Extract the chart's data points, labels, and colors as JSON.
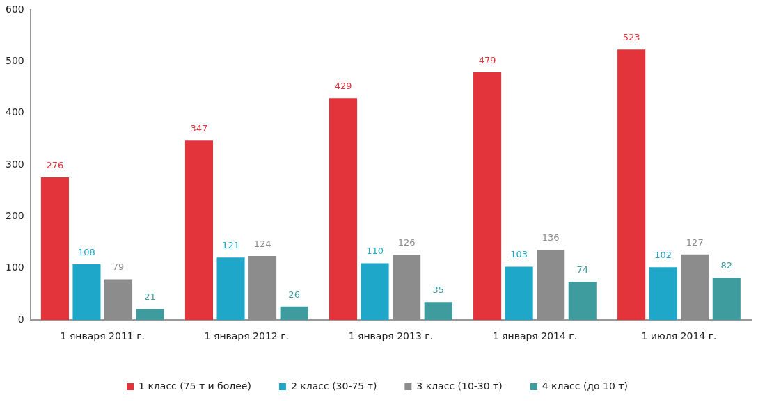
{
  "chart_data": {
    "type": "bar",
    "categories": [
      "1 января 2011 г.",
      "1 января 2012 г.",
      "1 января 2013 г.",
      "1 января 2014 г.",
      "1 июля 2014 г."
    ],
    "series": [
      {
        "name": "1 класс (75 т и более)",
        "color": "#e2343a",
        "values": [
          276,
          347,
          429,
          479,
          523
        ]
      },
      {
        "name": "2 класс (30-75 т)",
        "color": "#1ea7c9",
        "values": [
          108,
          121,
          110,
          103,
          102
        ]
      },
      {
        "name": "3 класс (10-30 т)",
        "color": "#8c8c8c",
        "values": [
          79,
          124,
          126,
          136,
          127
        ]
      },
      {
        "name": "4 класс (до 10 т)",
        "color": "#3e9c9e",
        "values": [
          21,
          26,
          35,
          74,
          82
        ]
      }
    ],
    "ylim": [
      0,
      600
    ],
    "yticks": [
      0,
      100,
      200,
      300,
      400,
      500,
      600
    ],
    "grid": false,
    "legend": "bottom",
    "data_labels": true
  }
}
